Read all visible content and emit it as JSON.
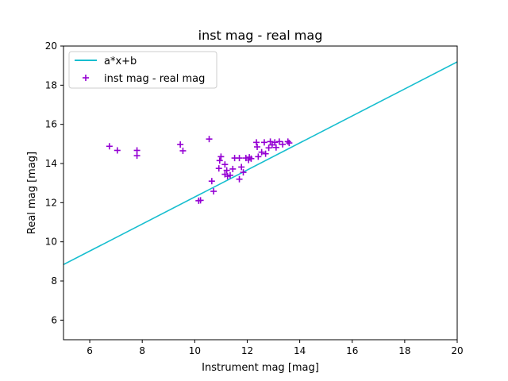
{
  "chart_data": {
    "type": "scatter",
    "title": "inst mag - real mag",
    "xlabel": "Instrument mag [mag]",
    "ylabel": "Real mag [mag]",
    "xlim": [
      5,
      20
    ],
    "ylim": [
      5,
      20
    ],
    "xticks": [
      6,
      8,
      10,
      12,
      14,
      16,
      18,
      20
    ],
    "yticks": [
      6,
      8,
      10,
      12,
      14,
      16,
      18,
      20
    ],
    "grid": false,
    "legend_position": "upper-left",
    "fit_line": {
      "name": "a*x+b",
      "slope": 0.69,
      "intercept": 5.39,
      "color": "#17becf"
    },
    "series": [
      {
        "name": "inst mag - real mag",
        "color": "#9400d3",
        "marker": "plus",
        "points": [
          [
            6.75,
            14.88
          ],
          [
            7.05,
            14.67
          ],
          [
            7.8,
            14.67
          ],
          [
            7.8,
            14.4
          ],
          [
            9.45,
            14.97
          ],
          [
            9.55,
            14.65
          ],
          [
            10.15,
            12.1
          ],
          [
            10.22,
            12.12
          ],
          [
            10.55,
            15.25
          ],
          [
            10.65,
            13.1
          ],
          [
            10.72,
            12.58
          ],
          [
            10.92,
            13.75
          ],
          [
            10.95,
            14.15
          ],
          [
            11.0,
            14.35
          ],
          [
            11.15,
            13.95
          ],
          [
            11.15,
            13.45
          ],
          [
            11.22,
            13.65
          ],
          [
            11.25,
            13.35
          ],
          [
            11.35,
            13.4
          ],
          [
            11.45,
            13.72
          ],
          [
            11.52,
            14.28
          ],
          [
            11.7,
            14.28
          ],
          [
            11.7,
            13.2
          ],
          [
            11.78,
            13.82
          ],
          [
            11.85,
            13.55
          ],
          [
            11.95,
            14.28
          ],
          [
            12.05,
            14.18
          ],
          [
            12.08,
            14.32
          ],
          [
            12.15,
            14.25
          ],
          [
            12.35,
            15.08
          ],
          [
            12.38,
            14.85
          ],
          [
            12.42,
            14.35
          ],
          [
            12.55,
            14.58
          ],
          [
            12.65,
            15.08
          ],
          [
            12.7,
            14.5
          ],
          [
            12.82,
            14.8
          ],
          [
            12.88,
            15.12
          ],
          [
            12.95,
            14.95
          ],
          [
            13.05,
            15.08
          ],
          [
            13.1,
            14.82
          ],
          [
            13.22,
            15.12
          ],
          [
            13.35,
            14.98
          ],
          [
            13.55,
            15.12
          ],
          [
            13.6,
            15.05
          ]
        ]
      }
    ]
  }
}
